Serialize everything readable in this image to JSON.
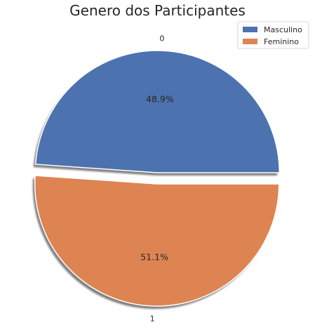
{
  "chart_data": {
    "type": "pie",
    "title": "Genero dos Participantes",
    "slices": [
      {
        "label": "0",
        "legend": "Masculino",
        "value": 48.9,
        "pct_text": "48.9%",
        "color": "#4c72b0"
      },
      {
        "label": "1",
        "legend": "Feminino",
        "value": 51.1,
        "pct_text": "51.1%",
        "color": "#dd8452"
      }
    ],
    "legend_position": "top-right",
    "shadow": true,
    "explode": true
  }
}
